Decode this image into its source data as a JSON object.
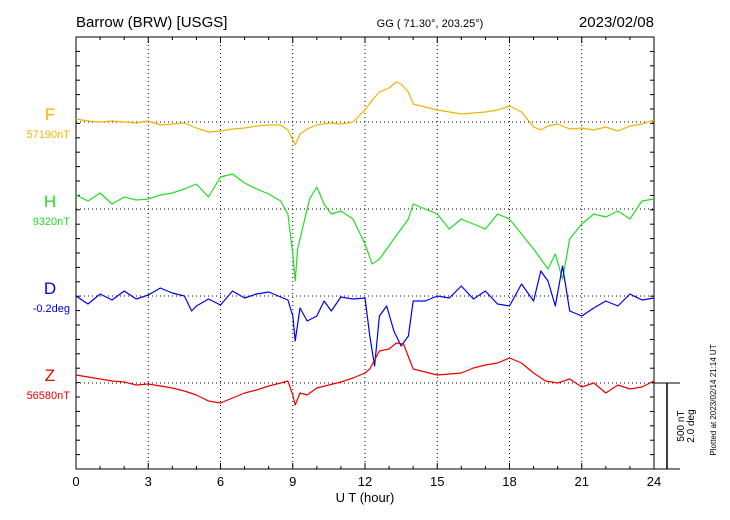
{
  "chart_data": {
    "type": "line",
    "title_left": "Barrow (BRW)  [USGS]",
    "title_center": "GG ( 71.30°, 203.25°)",
    "title_right": "2023/02/08",
    "xlabel": "U T (hour)",
    "xlim": [
      0,
      24
    ],
    "xticks": [
      "0",
      "3",
      "6",
      "9",
      "12",
      "15",
      "18",
      "21",
      "24"
    ],
    "scale_bar": {
      "label1": "500 nT",
      "label2": "2.0 deg"
    },
    "plotted_note": "Plotted at 2023/02/14 21:14 UT",
    "series": [
      {
        "name": "F",
        "baseline": "57190nT",
        "color": "#f0b400",
        "x": [
          0,
          0.5,
          1,
          1.5,
          2,
          2.5,
          3,
          3.5,
          4,
          4.5,
          5,
          5.5,
          6,
          6.5,
          7,
          7.5,
          8,
          8.5,
          8.8,
          9,
          9.1,
          9.3,
          9.6,
          10,
          10.5,
          11,
          11.5,
          12,
          12.3,
          12.6,
          13,
          13.3,
          13.5,
          13.8,
          14,
          15,
          16,
          16.5,
          17,
          17.5,
          18,
          18.5,
          19,
          19.3,
          19.6,
          20,
          20.5,
          21,
          21.5,
          22,
          22.5,
          23,
          23.5,
          24
        ],
        "y": [
          3,
          1,
          0,
          1,
          0,
          -1,
          1,
          -3,
          -2,
          -1,
          -6,
          -10,
          -9,
          -7,
          -6,
          -4,
          -3,
          -3,
          -8,
          -18,
          -23,
          -12,
          -7,
          -3,
          -1,
          -2,
          0,
          12,
          22,
          30,
          34,
          40,
          38,
          30,
          18,
          12,
          8,
          9,
          10,
          12,
          16,
          10,
          -5,
          -8,
          -4,
          -2,
          -7,
          -6,
          -8,
          -5,
          -9,
          -4,
          -2,
          2
        ]
      },
      {
        "name": "H",
        "baseline": "9320nT",
        "color": "#22dd22",
        "x": [
          0,
          0.5,
          1,
          1.5,
          2,
          2.5,
          3,
          3.5,
          4,
          4.5,
          5,
          5.5,
          6,
          6.5,
          7,
          7.5,
          8,
          8.5,
          8.8,
          9,
          9.1,
          9.2,
          9.4,
          9.7,
          10,
          10.3,
          10.6,
          11,
          11.5,
          12,
          12.3,
          12.6,
          12.9,
          13.2,
          13.5,
          13.8,
          14,
          14.5,
          15,
          15.5,
          16,
          16.5,
          17,
          17.5,
          18,
          18.5,
          19,
          19.3,
          19.6,
          19.9,
          20.2,
          20.5,
          21,
          21.5,
          22,
          22.5,
          23,
          23.5,
          24
        ],
        "y": [
          14,
          8,
          16,
          5,
          12,
          9,
          10,
          14,
          16,
          20,
          25,
          12,
          32,
          35,
          26,
          20,
          15,
          8,
          -5,
          -45,
          -72,
          -40,
          -20,
          10,
          22,
          5,
          -5,
          -2,
          -10,
          -35,
          -55,
          -50,
          -40,
          -30,
          -20,
          -10,
          5,
          0,
          -5,
          -20,
          -10,
          -15,
          -20,
          -5,
          -10,
          -25,
          -40,
          -50,
          -60,
          -45,
          -70,
          -30,
          -15,
          -5,
          -8,
          -2,
          -10,
          8,
          10
        ]
      },
      {
        "name": "D",
        "baseline": "-0.2deg",
        "color": "#0000ee",
        "x": [
          0,
          0.5,
          1,
          1.5,
          2,
          2.5,
          3,
          3.5,
          4,
          4.5,
          4.8,
          5,
          5.5,
          6,
          6.5,
          7,
          7.5,
          8,
          8.5,
          8.8,
          9,
          9.1,
          9.3,
          9.6,
          10,
          10.3,
          10.6,
          11,
          11.5,
          12,
          12.2,
          12.4,
          12.6,
          12.9,
          13.2,
          13.5,
          13.8,
          14,
          14.5,
          15,
          15.5,
          16,
          16.5,
          17,
          17.5,
          18,
          18.5,
          19,
          19.3,
          19.6,
          19.9,
          20.2,
          20.5,
          21,
          21.5,
          22,
          22.5,
          23,
          23.5,
          24
        ],
        "y": [
          0,
          -8,
          2,
          -4,
          5,
          -3,
          1,
          8,
          3,
          0,
          -15,
          -10,
          -3,
          -9,
          5,
          -2,
          2,
          4,
          -1,
          -4,
          -20,
          -45,
          -12,
          -25,
          -20,
          -5,
          -15,
          -1,
          -3,
          -2,
          -40,
          -70,
          -20,
          -10,
          -35,
          -50,
          -40,
          -5,
          -5,
          0,
          -2,
          10,
          -3,
          5,
          -8,
          -10,
          12,
          -5,
          25,
          15,
          -10,
          30,
          -15,
          -20,
          -12,
          -5,
          -10,
          2,
          -4,
          -2
        ]
      },
      {
        "name": "Z",
        "baseline": "56580nT",
        "color": "#ee0000",
        "x": [
          0,
          0.5,
          1,
          1.5,
          2,
          2.5,
          3,
          3.5,
          4,
          4.5,
          5,
          5.5,
          6,
          6.5,
          7,
          7.5,
          8,
          8.5,
          8.8,
          9,
          9.1,
          9.3,
          9.6,
          10,
          10.5,
          11,
          11.5,
          12,
          12.2,
          12.6,
          13,
          13.3,
          13.6,
          14,
          15,
          16,
          16.5,
          17,
          17.5,
          18,
          18.5,
          19,
          19.5,
          20,
          20.5,
          21,
          21.5,
          22,
          22.5,
          23,
          23.5,
          24
        ],
        "y": [
          8,
          6,
          4,
          2,
          1,
          -2,
          -1,
          -3,
          -5,
          -8,
          -12,
          -18,
          -20,
          -15,
          -10,
          -7,
          -3,
          0,
          2,
          -12,
          -22,
          -10,
          -12,
          -5,
          -2,
          1,
          5,
          10,
          14,
          32,
          34,
          40,
          39,
          14,
          8,
          10,
          15,
          18,
          20,
          25,
          20,
          10,
          2,
          0,
          4,
          -4,
          0,
          -10,
          -2,
          -6,
          -4,
          2
        ]
      }
    ]
  }
}
